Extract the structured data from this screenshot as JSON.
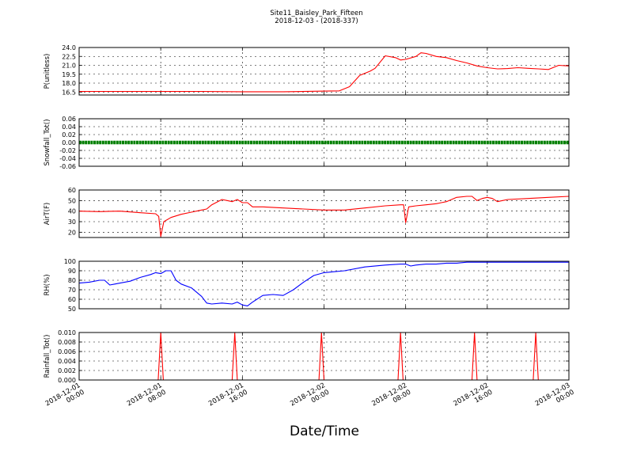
{
  "title_line1": "Site11_Baisley_Park_Fifteen",
  "title_line2": "2018-12-03 - (2018-337)",
  "xlabel": "Date/Time",
  "x_ticks": [
    [
      "2018-12-01",
      "00:00"
    ],
    [
      "2018-12-01",
      "08:00"
    ],
    [
      "2018-12-01",
      "16:00"
    ],
    [
      "2018-12-02",
      "00:00"
    ],
    [
      "2018-12-02",
      "08:00"
    ],
    [
      "2018-12-02",
      "16:00"
    ],
    [
      "2018-12-03",
      "00:00"
    ]
  ],
  "chart_data": [
    {
      "type": "line",
      "ylabel": "P(unitless)",
      "ylim": [
        16.0,
        24.0
      ],
      "yticks": [
        "24.0",
        "22.5",
        "21.0",
        "19.5",
        "18.0",
        "16.5"
      ],
      "grid": true,
      "series": [
        {
          "color": "#ff0000",
          "x_hours": [
            0,
            4,
            8,
            12,
            16,
            20,
            24,
            25.5,
            26.5,
            27.5,
            28.5,
            29,
            30,
            31,
            31.5,
            32,
            33,
            33.5,
            34,
            35,
            36,
            37,
            38,
            39,
            40,
            41,
            42,
            43,
            44,
            45,
            46,
            47,
            48
          ],
          "y": [
            16.6,
            16.6,
            16.6,
            16.6,
            16.55,
            16.55,
            16.65,
            16.7,
            17.4,
            19.3,
            20.0,
            20.5,
            22.6,
            22.3,
            21.9,
            22.0,
            22.5,
            23.1,
            23.0,
            22.5,
            22.3,
            21.8,
            21.4,
            20.9,
            20.6,
            20.4,
            20.45,
            20.6,
            20.5,
            20.4,
            20.3,
            21.0,
            20.9
          ]
        }
      ]
    },
    {
      "type": "line",
      "ylabel": "Snowfall_Tot()",
      "ylim": [
        -0.06,
        0.06
      ],
      "yticks": [
        "0.06",
        "0.04",
        "0.02",
        "0.00",
        "-0.02",
        "-0.04",
        "-0.06"
      ],
      "grid": true,
      "series": [
        {
          "color": "#008000",
          "marker": "dot",
          "x_hours": [
            0,
            48
          ],
          "y": [
            0.0,
            0.0
          ]
        }
      ]
    },
    {
      "type": "line",
      "ylabel": "AirT(F)",
      "ylim": [
        15,
        60
      ],
      "yticks": [
        "60",
        "50",
        "40",
        "30",
        "20"
      ],
      "grid": true,
      "series": [
        {
          "color": "#ff0000",
          "x_hours": [
            0,
            2,
            3,
            4,
            6,
            7.5,
            7.8,
            8,
            8.3,
            9,
            10,
            11,
            12,
            12.5,
            13,
            14,
            14.5,
            15,
            15.5,
            16,
            16.5,
            17,
            18,
            20,
            22,
            24,
            26,
            28,
            30,
            31.5,
            31.8,
            32,
            32.3,
            33,
            34,
            35,
            35.5,
            36,
            37,
            38,
            38.5,
            39,
            39.5,
            40,
            40.5,
            41,
            41.5,
            42,
            44,
            46,
            48
          ],
          "y": [
            40,
            39.5,
            39.8,
            40,
            38.5,
            37.5,
            35,
            16,
            30,
            34,
            37,
            39,
            41,
            42,
            46,
            51,
            50,
            49,
            51,
            48,
            48,
            44,
            44,
            43,
            42,
            41,
            41,
            43,
            45,
            46,
            46,
            29,
            44,
            45,
            46,
            47,
            48,
            49,
            53,
            54,
            54,
            50,
            52,
            53,
            52,
            49,
            50,
            51,
            52,
            53,
            54
          ]
        }
      ]
    },
    {
      "type": "line",
      "ylabel": "RH(%)",
      "ylim": [
        50,
        100
      ],
      "yticks": [
        "100",
        "90",
        "80",
        "70",
        "60",
        "50"
      ],
      "grid": true,
      "series": [
        {
          "color": "#0000ff",
          "x_hours": [
            0,
            1,
            2,
            2.5,
            3,
            3.5,
            4,
            5,
            6,
            7,
            7.5,
            8,
            8.5,
            9,
            9.5,
            10,
            11,
            12,
            12.5,
            13,
            14,
            15,
            15.5,
            16,
            16.5,
            17,
            18,
            19,
            20,
            21,
            22,
            23,
            24,
            25,
            26,
            28,
            30,
            31.5,
            32,
            32.5,
            33,
            34,
            35,
            36,
            37,
            38,
            40,
            42,
            44,
            46,
            48
          ],
          "y": [
            77,
            78,
            80,
            80,
            75,
            76,
            77,
            79,
            83,
            86,
            88,
            87,
            90,
            90,
            80,
            76,
            72,
            63,
            56,
            55,
            56,
            55,
            57,
            54,
            53,
            57,
            64,
            65,
            64,
            70,
            78,
            85,
            88,
            89,
            90,
            94,
            96,
            97,
            97,
            95,
            96,
            97,
            97,
            98,
            98,
            99,
            99,
            99,
            99,
            99,
            99
          ]
        }
      ]
    },
    {
      "type": "line",
      "ylabel": "Rainfall_Tot()",
      "ylim": [
        0.0,
        0.01
      ],
      "yticks": [
        "0.010",
        "0.008",
        "0.006",
        "0.004",
        "0.002",
        "0.000"
      ],
      "grid": true,
      "series": [
        {
          "color": "#ff0000",
          "x_hours": [
            0,
            7.75,
            8.0,
            8.25,
            15.0,
            15.25,
            15.5,
            23.5,
            23.75,
            24.0,
            31.25,
            31.5,
            31.75,
            38.5,
            38.75,
            39.0,
            44.5,
            44.75,
            45.0,
            48
          ],
          "y": [
            0,
            0,
            0.01,
            0,
            0,
            0.01,
            0,
            0,
            0.01,
            0,
            0,
            0.01,
            0,
            0,
            0.01,
            0,
            0,
            0.01,
            0,
            0
          ]
        }
      ]
    }
  ]
}
